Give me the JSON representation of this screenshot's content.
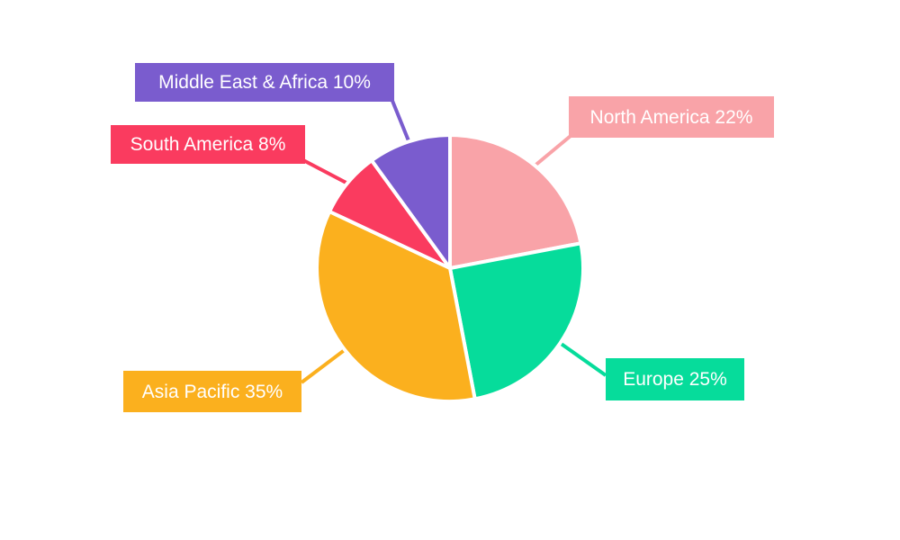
{
  "chart_data": {
    "type": "pie",
    "title": "",
    "legend_position": "none",
    "background": "#FFFFFF",
    "slice_gap_color": "#FFFFFF",
    "text_color": "#FFFFFF",
    "direction": "clockwise",
    "start_angle_deg": 0,
    "label_style": "callout-boxes",
    "slices": [
      {
        "label": "North America",
        "value": 22,
        "display": "North America 22%",
        "color": "#F9A3A8"
      },
      {
        "label": "Europe",
        "value": 25,
        "display": "Europe 25%",
        "color": "#06DC9B"
      },
      {
        "label": "Asia Pacific",
        "value": 35,
        "display": "Asia Pacific 35%",
        "color": "#FBB01E"
      },
      {
        "label": "South America",
        "value": 8,
        "display": "South America 8%",
        "color": "#FA3B5F"
      },
      {
        "label": "Middle East & Africa",
        "value": 10,
        "display": "Middle East & Africa 10%",
        "color": "#7A5CCE"
      }
    ]
  }
}
